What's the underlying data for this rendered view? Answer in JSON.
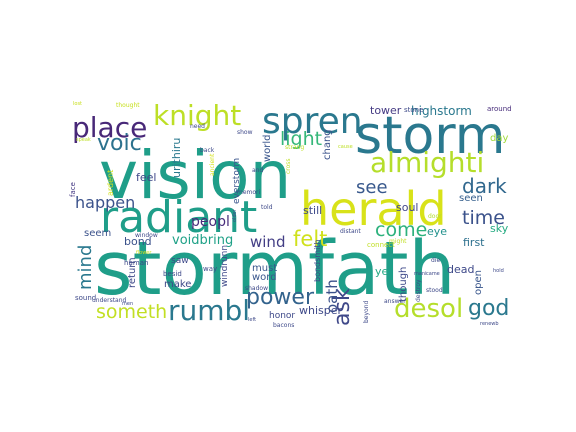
{
  "words": [
    {
      "text": "stormfath",
      "color": "#1f9e89"
    },
    {
      "text": "vision",
      "color": "#1f9e89"
    },
    {
      "text": "storm",
      "color": "#2a788e"
    },
    {
      "text": "radiant",
      "color": "#1f9e89"
    },
    {
      "text": "herald",
      "color": "#d8e219"
    },
    {
      "text": "spren",
      "color": "#2a788e"
    },
    {
      "text": "almighti",
      "color": "#b5de2b"
    },
    {
      "text": "knight",
      "color": "#bddf26"
    },
    {
      "text": "place",
      "color": "#482878"
    },
    {
      "text": "voic",
      "color": "#2c728e"
    },
    {
      "text": "desol",
      "color": "#b5de2b"
    },
    {
      "text": "rumbl",
      "color": "#2a788e"
    },
    {
      "text": "power",
      "color": "#33638d"
    },
    {
      "text": "someth",
      "color": "#c2df23"
    },
    {
      "text": "god",
      "color": "#2a788e"
    },
    {
      "text": "see",
      "color": "#38588c"
    },
    {
      "text": "dark",
      "color": "#31688e"
    },
    {
      "text": "time",
      "color": "#3b528b"
    },
    {
      "text": "come",
      "color": "#2db27d"
    },
    {
      "text": "ask",
      "color": "#3f4889"
    },
    {
      "text": "felt",
      "color": "#d0e11c"
    },
    {
      "text": "light",
      "color": "#35b779"
    },
    {
      "text": "mind",
      "color": "#2a788e"
    },
    {
      "text": "oath",
      "color": "#3b528b"
    },
    {
      "text": "happen",
      "color": "#3b528b"
    },
    {
      "text": "peopl",
      "color": "#472d7b"
    },
    {
      "text": "wind",
      "color": "#433e85"
    },
    {
      "text": "voidbring",
      "color": "#1fa187"
    },
    {
      "text": "highstorm",
      "color": "#2a788e"
    },
    {
      "text": "tower",
      "color": "#443a83"
    },
    {
      "text": "stone",
      "color": "#3e4a89"
    },
    {
      "text": "around",
      "color": "#472c7a"
    },
    {
      "text": "thought",
      "color": "#c8e020"
    },
    {
      "text": "lost",
      "color": "#c8e020"
    },
    {
      "text": "feel",
      "color": "#3f4889"
    },
    {
      "text": "urithiru",
      "color": "#2a788e"
    },
    {
      "text": "everstorm",
      "color": "#39558c"
    },
    {
      "text": "world",
      "color": "#39568c"
    },
    {
      "text": "ancient",
      "color": "#d5e21a"
    },
    {
      "text": "chang",
      "color": "#3b528b"
    },
    {
      "text": "soul",
      "color": "#404688"
    },
    {
      "text": "door",
      "color": "#b5de2b"
    },
    {
      "text": "seen",
      "color": "#355f8d"
    },
    {
      "text": "eye",
      "color": "#21918c"
    },
    {
      "text": "sky",
      "color": "#25ab82"
    },
    {
      "text": "first",
      "color": "#2d708e"
    },
    {
      "text": "day",
      "color": "#a0da39"
    },
    {
      "text": "bond",
      "color": "#3b528b"
    },
    {
      "text": "seem",
      "color": "#3b528b"
    },
    {
      "text": "face",
      "color": "#443983"
    },
    {
      "text": "ardent",
      "color": "#d2e21b"
    },
    {
      "text": "still",
      "color": "#3e4989"
    },
    {
      "text": "dead",
      "color": "#3e4989"
    },
    {
      "text": "open",
      "color": "#39568c"
    },
    {
      "text": "ye",
      "color": "#22a884"
    },
    {
      "text": "must",
      "color": "#39568c"
    },
    {
      "text": "word",
      "color": "#39568c"
    },
    {
      "text": "whisper",
      "color": "#3e4989"
    },
    {
      "text": "honor",
      "color": "#3e4989"
    },
    {
      "text": "windrunn",
      "color": "#3e4989"
    },
    {
      "text": "return",
      "color": "#3e4989"
    },
    {
      "text": "make",
      "color": "#3e4989"
    },
    {
      "text": "saw",
      "color": "#3e4989"
    },
    {
      "text": "though",
      "color": "#3e4989"
    },
    {
      "text": "bondsmith",
      "color": "#3e4989"
    },
    {
      "text": "connect",
      "color": "#c0df25"
    },
    {
      "text": "might",
      "color": "#c0df25"
    },
    {
      "text": "came",
      "color": "#3e4989"
    },
    {
      "text": "stood",
      "color": "#3e4989"
    },
    {
      "text": "answer",
      "color": "#3e4989"
    },
    {
      "text": "destroy",
      "color": "#3e4989"
    },
    {
      "text": "beyond",
      "color": "#3e4989"
    },
    {
      "text": "renewb",
      "color": "#3e4989"
    },
    {
      "text": "die",
      "color": "#3e4989"
    },
    {
      "text": "mani",
      "color": "#3e4989"
    },
    {
      "text": "distant",
      "color": "#3e4989"
    },
    {
      "text": "older",
      "color": "#3e4989"
    },
    {
      "text": "memori",
      "color": "#3e4989"
    },
    {
      "text": "told",
      "color": "#3e4989"
    },
    {
      "text": "and",
      "color": "#3e4989"
    },
    {
      "text": "back",
      "color": "#3e4989"
    },
    {
      "text": "strang",
      "color": "#bddf26"
    },
    {
      "text": "show",
      "color": "#3e4989"
    },
    {
      "text": "cross",
      "color": "#bddf26"
    },
    {
      "text": "cause",
      "color": "#bddf26"
    },
    {
      "text": "speak",
      "color": "#bddf26"
    },
    {
      "text": "need",
      "color": "#3e4989"
    },
    {
      "text": "window",
      "color": "#3e4989"
    },
    {
      "text": "besid",
      "color": "#3e4989"
    },
    {
      "text": "way",
      "color": "#3e4989"
    },
    {
      "text": "human",
      "color": "#3e4989"
    },
    {
      "text": "flower",
      "color": "#c8e020"
    },
    {
      "text": "sound",
      "color": "#3e4989"
    },
    {
      "text": "understand",
      "color": "#3e4989"
    },
    {
      "text": "men",
      "color": "#3e4989"
    },
    {
      "text": "left",
      "color": "#3e4989"
    },
    {
      "text": "shadow",
      "color": "#3e4989"
    },
    {
      "text": "bacons",
      "color": "#3e4989"
    },
    {
      "text": "hold",
      "color": "#3e4989"
    }
  ]
}
